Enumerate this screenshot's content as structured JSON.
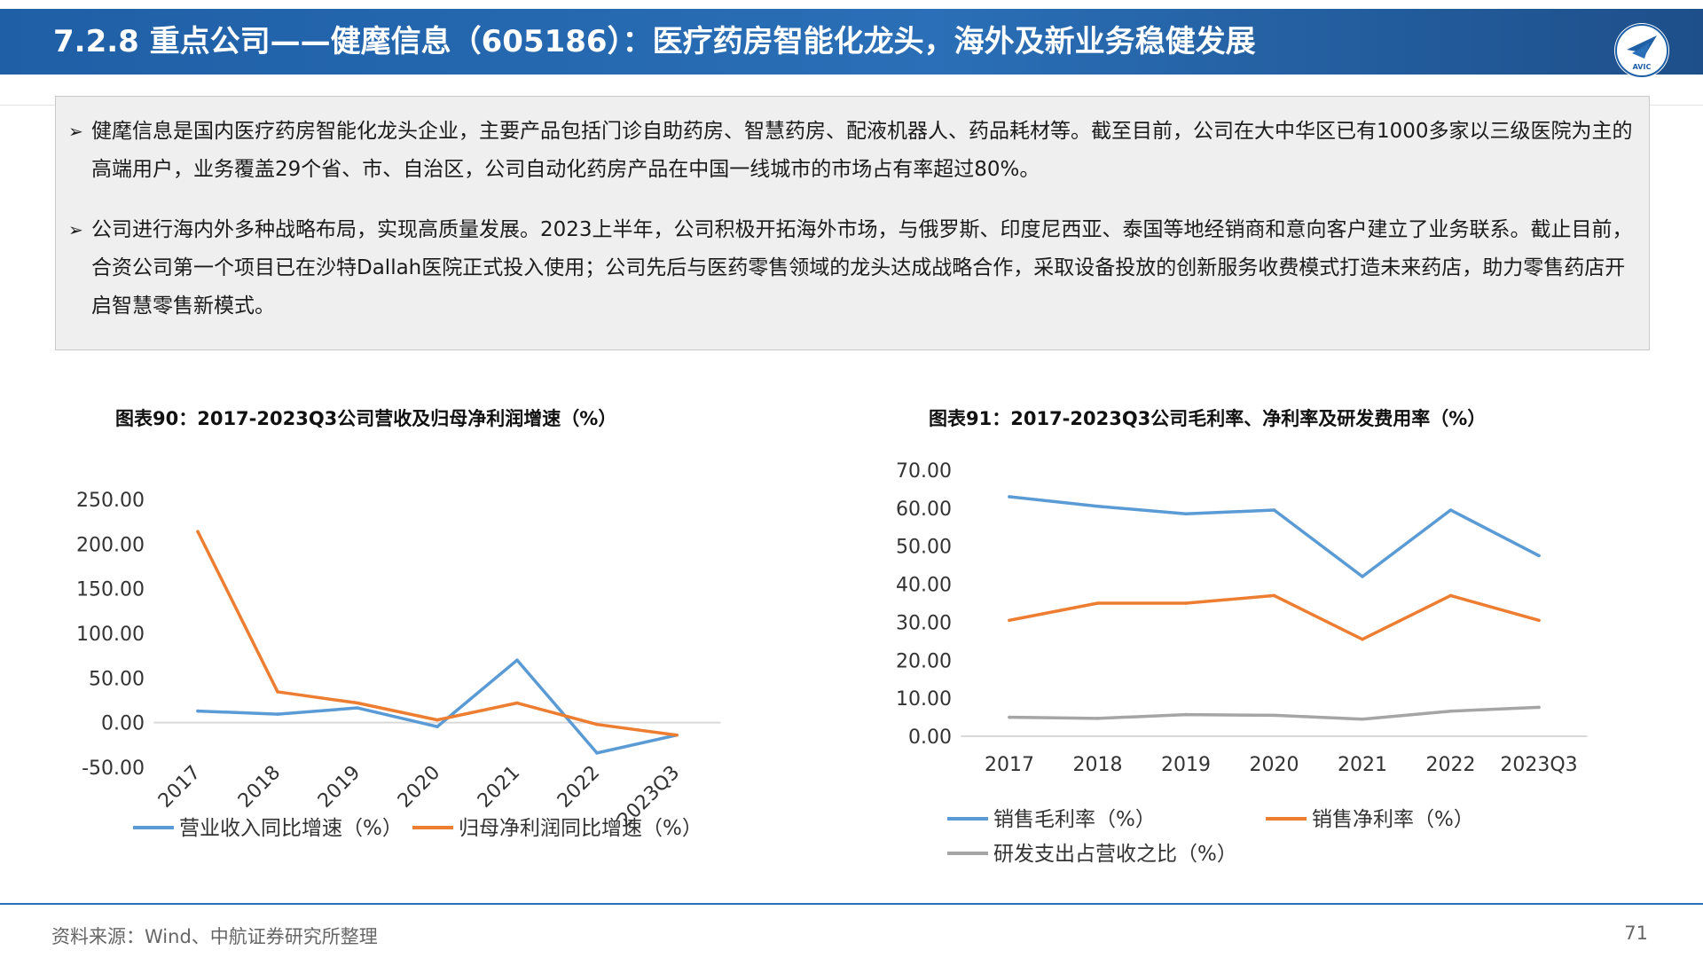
{
  "header": {
    "title": "7.2.8 重点公司——健麾信息（605186）：医疗药房智能化龙头，海外及新业务稳健发展",
    "logo_text": "AVIC"
  },
  "summary": {
    "bullet_symbol": "➢",
    "bullets": [
      "健麾信息是国内医疗药房智能化龙头企业，主要产品包括门诊自助药房、智慧药房、配液机器人、药品耗材等。截至目前，公司在大中华区已有1000多家以三级医院为主的高端用户，业务覆盖29个省、市、自治区，公司自动化药房产品在中国一线城市的市场占有率超过80%。",
      "公司进行海内外多种战略布局，实现高质量发展。2023上半年，公司积极开拓海外市场，与俄罗斯、印度尼西亚、泰国等地经销商和意向客户建立了业务联系。截止目前，合资公司第一个项目已在沙特Dallah医院正式投入使用；公司先后与医药零售领域的龙头达成战略合作，采取设备投放的创新服务收费模式打造未来药店，助力零售药店开启智慧零售新模式。"
    ]
  },
  "chart_data": [
    {
      "type": "line",
      "title": "图表90：2017-2023Q3公司营收及归母净利润增速（%）",
      "categories": [
        "2017",
        "2018",
        "2019",
        "2020",
        "2021",
        "2022",
        "2023Q3"
      ],
      "series": [
        {
          "name": "营业收入同比增速（%）",
          "color": "#5b9bd5",
          "values": [
            13,
            9.5,
            16.5,
            -4.5,
            70,
            -34,
            -14
          ]
        },
        {
          "name": "归母净利润同比增速（%）",
          "color": "#ed7d31",
          "values": [
            214,
            34.5,
            22,
            3,
            22,
            -2,
            -14
          ]
        }
      ],
      "yticks": [
        "250.00",
        "200.00",
        "150.00",
        "100.00",
        "50.00",
        "0.00",
        "-50.00"
      ],
      "ylim": [
        -50,
        250
      ],
      "xlabel": "",
      "ylabel": "",
      "grid": false,
      "legend": "bottom"
    },
    {
      "type": "line",
      "title": "图表91：2017-2023Q3公司毛利率、净利率及研发费用率（%）",
      "categories": [
        "2017",
        "2018",
        "2019",
        "2020",
        "2021",
        "2022",
        "2023Q3"
      ],
      "series": [
        {
          "name": "销售毛利率（%）",
          "color": "#5b9bd5",
          "values": [
            63,
            60.5,
            58.5,
            59.5,
            42,
            59.5,
            47.5
          ]
        },
        {
          "name": "销售净利率（%）",
          "color": "#ed7d31",
          "values": [
            30.5,
            35,
            35,
            37,
            25.5,
            37,
            30.5
          ]
        },
        {
          "name": "研发支出占营收之比（%）",
          "color": "#a5a5a5",
          "values": [
            5,
            4.7,
            5.7,
            5.5,
            4.5,
            6.6,
            7.6
          ]
        }
      ],
      "yticks": [
        "70.00",
        "60.00",
        "50.00",
        "40.00",
        "30.00",
        "20.00",
        "10.00",
        "0.00"
      ],
      "ylim": [
        0,
        70
      ],
      "xlabel": "",
      "ylabel": "",
      "grid": false,
      "legend": "bottom"
    }
  ],
  "footer": {
    "source": "资料来源：Wind、中航证券研究所整理",
    "page": "71"
  }
}
